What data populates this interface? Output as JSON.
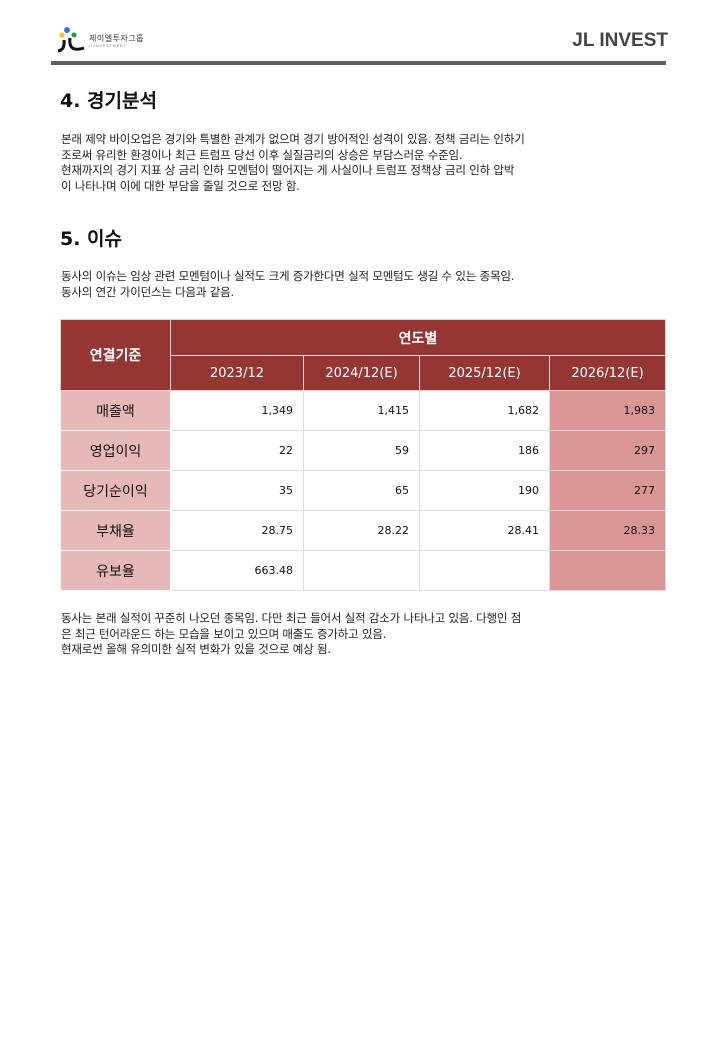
{
  "header": {
    "logo_text": "제이엘투자그룹",
    "logo_subtext": "JLINVESTMENT",
    "brand": "JL INVEST"
  },
  "sections": [
    {
      "title": "4. 경기분석",
      "lines": [
        "본래 제약 바이오업은 경기와 특별한 관계가 없으며 경기 방어적인 성격이 있음. 정책 금리는 인하기",
        "조로써 유리한 환경이나 최근 트럼프 당선 이후 실질금리의 상승은 부담스러운 수준임.",
        "현재까지의 경기 지표 상 금리 인하 모멘텀이 떨어지는 게 사실이나 트럼프 정책상 금리 인하 압박",
        "이 나타나며 이에 대한 부담을 줄일 것으로 전망 함."
      ]
    },
    {
      "title": "5. 이슈",
      "lines": [
        "동사의 이슈는 임상 관련 모멘텀이나 실적도 크게 증가한다면 실적 모멘텀도 생길 수 있는 종목임.",
        "동사의 연간 가이던스는 다음과 같음."
      ]
    }
  ],
  "table": {
    "corner": "연결기준",
    "group": "연도별",
    "columns": [
      "2023/12",
      "2024/12(E)",
      "2025/12(E)",
      "2026/12(E)"
    ],
    "rows": [
      {
        "label": "매출액",
        "values": [
          "1,349",
          "1,415",
          "1,682",
          "1,983"
        ]
      },
      {
        "label": "영업이익",
        "values": [
          "22",
          "59",
          "186",
          "297"
        ]
      },
      {
        "label": "당기순이익",
        "values": [
          "35",
          "65",
          "190",
          "277"
        ]
      },
      {
        "label": "부채율",
        "values": [
          "28.75",
          "28.22",
          "28.41",
          "28.33"
        ]
      },
      {
        "label": "유보율",
        "values": [
          "663.48",
          "",
          "",
          ""
        ]
      }
    ],
    "colors": {
      "header": "#943634",
      "label": "#e6b8b7",
      "highlight": "#da9694"
    }
  },
  "closing_lines": [
    "동사는 본래 실적이 꾸준히 나오던 종목임. 다만 최근 들어서 실적 감소가 나타나고 있음. 다행인 점",
    "은 최근 턴어라운드 하는 모습을 보이고 있으며 매출도 증가하고 있음.",
    "현재로썬 올해 유의미한 실적 변화가 있을 것으로 예상 됨."
  ]
}
